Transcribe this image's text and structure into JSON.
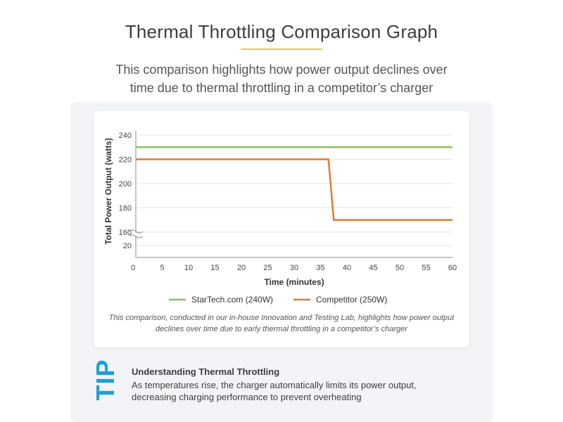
{
  "title": "Thermal Throttling Comparison Graph",
  "subtitle": "This comparison highlights how power output declines over time due to thermal throttling in a competitor’s charger",
  "caption": "This comparison, conducted in our in-house Innovation and Testing Lab, highlights how power output declines over time due to early thermal throttling in a competitor’s charger",
  "tip": {
    "label": "TIP",
    "heading": "Understanding Thermal Throttling",
    "body": "As temperatures rise, the charger automatically limits its power output, decreasing charging performance to prevent overheating"
  },
  "colors": {
    "accent_rule": "#f2c646",
    "tip": "#1da0d4",
    "startech": "#8cc158",
    "competitor": "#e07b30"
  },
  "chart_data": {
    "type": "line",
    "xlabel": "Time (minutes)",
    "ylabel": "Total Power Output (watts)",
    "xlim": [
      0,
      60
    ],
    "ylim": [
      20,
      240
    ],
    "y_axis_break": "between 20 and 160",
    "x_ticks": [
      0,
      5,
      10,
      15,
      20,
      25,
      30,
      35,
      40,
      45,
      50,
      55,
      60
    ],
    "y_ticks": [
      20,
      160,
      180,
      200,
      220,
      240
    ],
    "grid": "horizontal",
    "legend_position": "bottom",
    "series": [
      {
        "name": "StarTech.com (240W)",
        "color": "#8cc158",
        "points": [
          [
            0,
            230
          ],
          [
            60,
            230
          ]
        ]
      },
      {
        "name": "Competitor (250W)",
        "color": "#e07b30",
        "points": [
          [
            0,
            220
          ],
          [
            36.5,
            220
          ],
          [
            37.5,
            170
          ],
          [
            60,
            170
          ]
        ]
      }
    ]
  }
}
